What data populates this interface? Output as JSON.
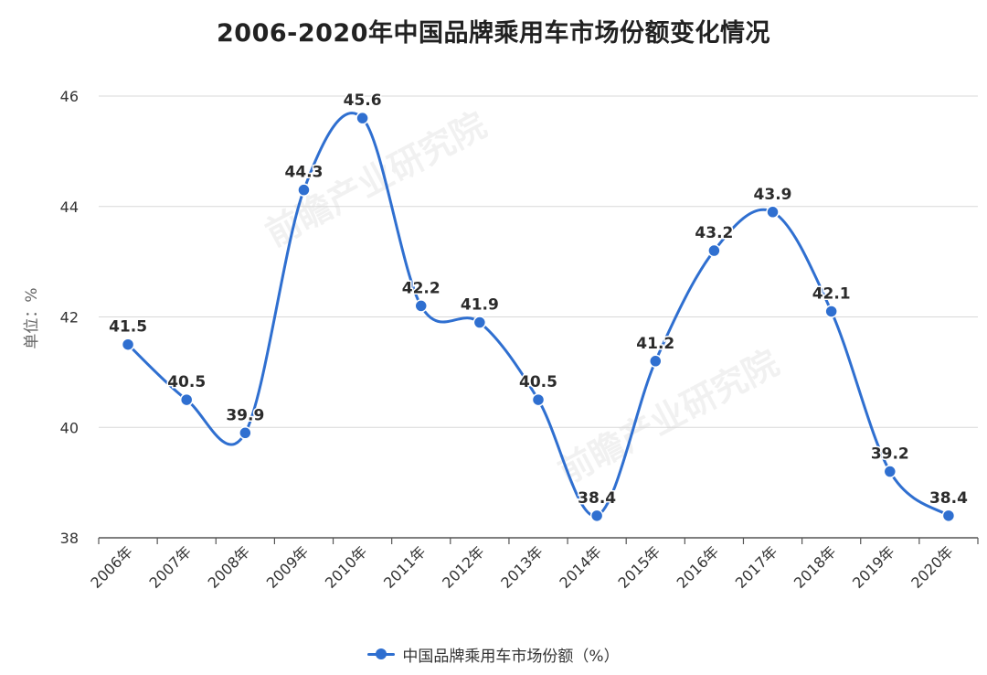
{
  "chart_data": {
    "type": "line",
    "title": "2006-2020年中国品牌乘用车市场份额变化情况",
    "ylabel": "单位：%",
    "xlabel": "",
    "ylim": [
      38,
      46
    ],
    "yticks": [
      38,
      40,
      42,
      44,
      46
    ],
    "categories": [
      "2006年",
      "2007年",
      "2008年",
      "2009年",
      "2010年",
      "2011年",
      "2012年",
      "2013年",
      "2014年",
      "2015年",
      "2016年",
      "2017年",
      "2018年",
      "2019年",
      "2020年"
    ],
    "series": [
      {
        "name": "中国品牌乘用车市场份额（%）",
        "values": [
          41.5,
          40.5,
          39.9,
          44.3,
          45.6,
          42.2,
          41.9,
          40.5,
          38.4,
          41.2,
          43.2,
          43.9,
          42.1,
          39.2,
          38.4
        ],
        "labels": [
          "41.5",
          "40.5",
          "39.9",
          "44.3",
          "45.6",
          "42.2",
          "41.9",
          "40.5",
          "38.4",
          "41.2",
          "43.2",
          "43.9",
          "42.1",
          "39.2",
          "38.4"
        ],
        "color": "#2f6fd0"
      }
    ],
    "grid": true,
    "legend_position": "bottom-center"
  },
  "watermark": "前瞻产业研究院",
  "colors": {
    "series": "#2f6fd0",
    "grid": "#d8d8d8",
    "axis": "#555555",
    "text": "#333333"
  }
}
